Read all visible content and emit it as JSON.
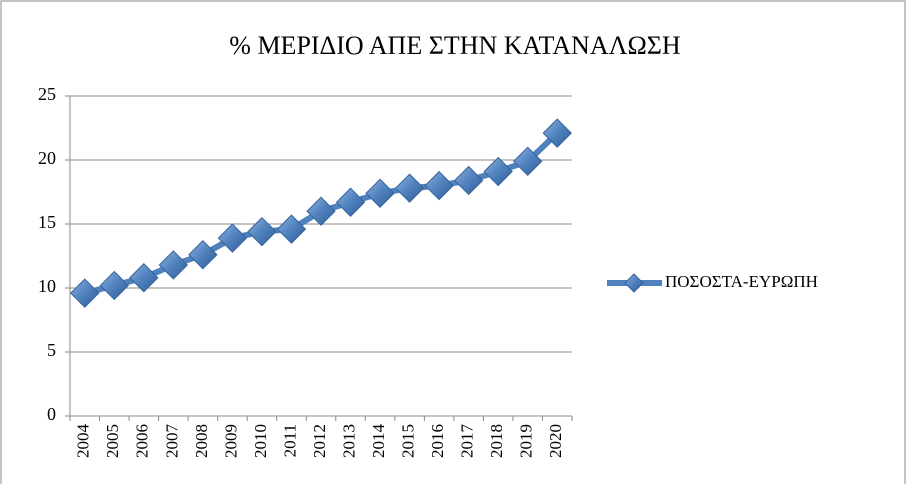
{
  "chart_data": {
    "type": "line",
    "title": "% ΜΕΡΙΔΙΟ ΑΠΕ ΣΤΗΝ ΚΑΤΑΝΑΛΩΣΗ",
    "categories": [
      "2004",
      "2005",
      "2006",
      "2007",
      "2008",
      "2009",
      "2010",
      "2011",
      "2012",
      "2013",
      "2014",
      "2015",
      "2016",
      "2017",
      "2018",
      "2019",
      "2020"
    ],
    "series": [
      {
        "name": "ΠΟΣΟΣΤΑ-ΕΥΡΩΠΗ",
        "color": "#4f81bd",
        "values": [
          9.6,
          10.2,
          10.8,
          11.8,
          12.6,
          13.9,
          14.4,
          14.6,
          16.0,
          16.7,
          17.4,
          17.8,
          18.0,
          18.4,
          19.1,
          19.9,
          22.1
        ]
      }
    ],
    "ylim": [
      0,
      25
    ],
    "yticks": [
      0,
      5,
      10,
      15,
      20,
      25
    ],
    "grid": true,
    "legend": "right"
  }
}
